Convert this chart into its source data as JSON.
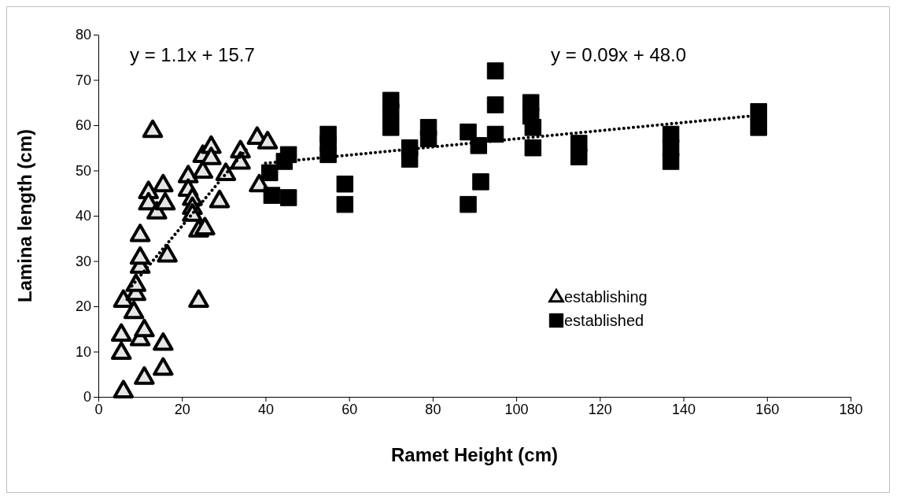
{
  "chart_data": {
    "type": "scatter",
    "xlabel": "Ramet Height (cm)",
    "ylabel": "Lamina length (cm)",
    "xlim": [
      0,
      180
    ],
    "xticks": [
      0,
      20,
      40,
      60,
      80,
      100,
      120,
      140,
      160,
      180
    ],
    "ylim": [
      0,
      80
    ],
    "yticks": [
      0,
      10,
      20,
      30,
      40,
      50,
      60,
      70,
      80
    ],
    "grid": false,
    "legend": "right",
    "annotations": [
      "y = 1.1x + 15.7",
      "y = 0.09x + 48.0"
    ],
    "series": [
      {
        "name": "establishing",
        "color": "#e6e6e6",
        "marker": "triangle",
        "x": [
          6,
          5.5,
          5.5,
          6,
          8.5,
          9,
          9,
          10,
          10,
          10,
          10,
          11,
          11,
          15.5,
          15.5,
          13,
          12,
          12,
          14,
          15.5,
          16,
          16.5,
          21.5,
          21.5,
          22.5,
          22.5,
          22.5,
          24,
          25.5,
          24,
          25,
          25,
          27,
          27,
          29,
          30.5,
          34,
          34,
          38,
          38.5,
          40.5
        ],
        "values": [
          1.5,
          10,
          14,
          21.5,
          19,
          23,
          25,
          29,
          31,
          36,
          13,
          15,
          4.5,
          12,
          6.5,
          59,
          45.5,
          43,
          41,
          47,
          43,
          31.5,
          49,
          46,
          44,
          42,
          40.5,
          37,
          37.5,
          21.5,
          50,
          53.5,
          55.5,
          53,
          43.5,
          49.5,
          54.5,
          52,
          57.5,
          47,
          56.5
        ]
      },
      {
        "name": "established",
        "color": "#000000",
        "marker": "square",
        "x": [
          41,
          41.5,
          44.5,
          45.5,
          45.5,
          55,
          55,
          55,
          59,
          59,
          70,
          70,
          70,
          74.5,
          74.5,
          79,
          79,
          88.5,
          88.5,
          91,
          91.5,
          95,
          95,
          95,
          103.5,
          103.5,
          104,
          104,
          115,
          115,
          137,
          137,
          137,
          158,
          158
        ],
        "values": [
          49.5,
          44.5,
          52,
          53.5,
          44,
          58,
          56,
          53.5,
          47,
          42.5,
          65.5,
          63,
          59.5,
          55,
          52.5,
          59.5,
          57,
          58.5,
          42.5,
          55.5,
          47.5,
          72,
          64.5,
          58,
          65,
          62,
          59.5,
          55,
          56,
          53,
          58,
          55,
          52,
          63,
          59.5
        ]
      },
      {
        "type": "line",
        "color": "#000000",
        "marker": "none",
        "line_style": "dotted",
        "x": [
          8,
          36
        ],
        "values": [
          24.5,
          55.3
        ]
      },
      {
        "type": "line",
        "color": "#000000",
        "marker": "none",
        "line_style": "dotted",
        "x": [
          40,
          158
        ],
        "values": [
          51.6,
          62.2
        ]
      }
    ]
  }
}
